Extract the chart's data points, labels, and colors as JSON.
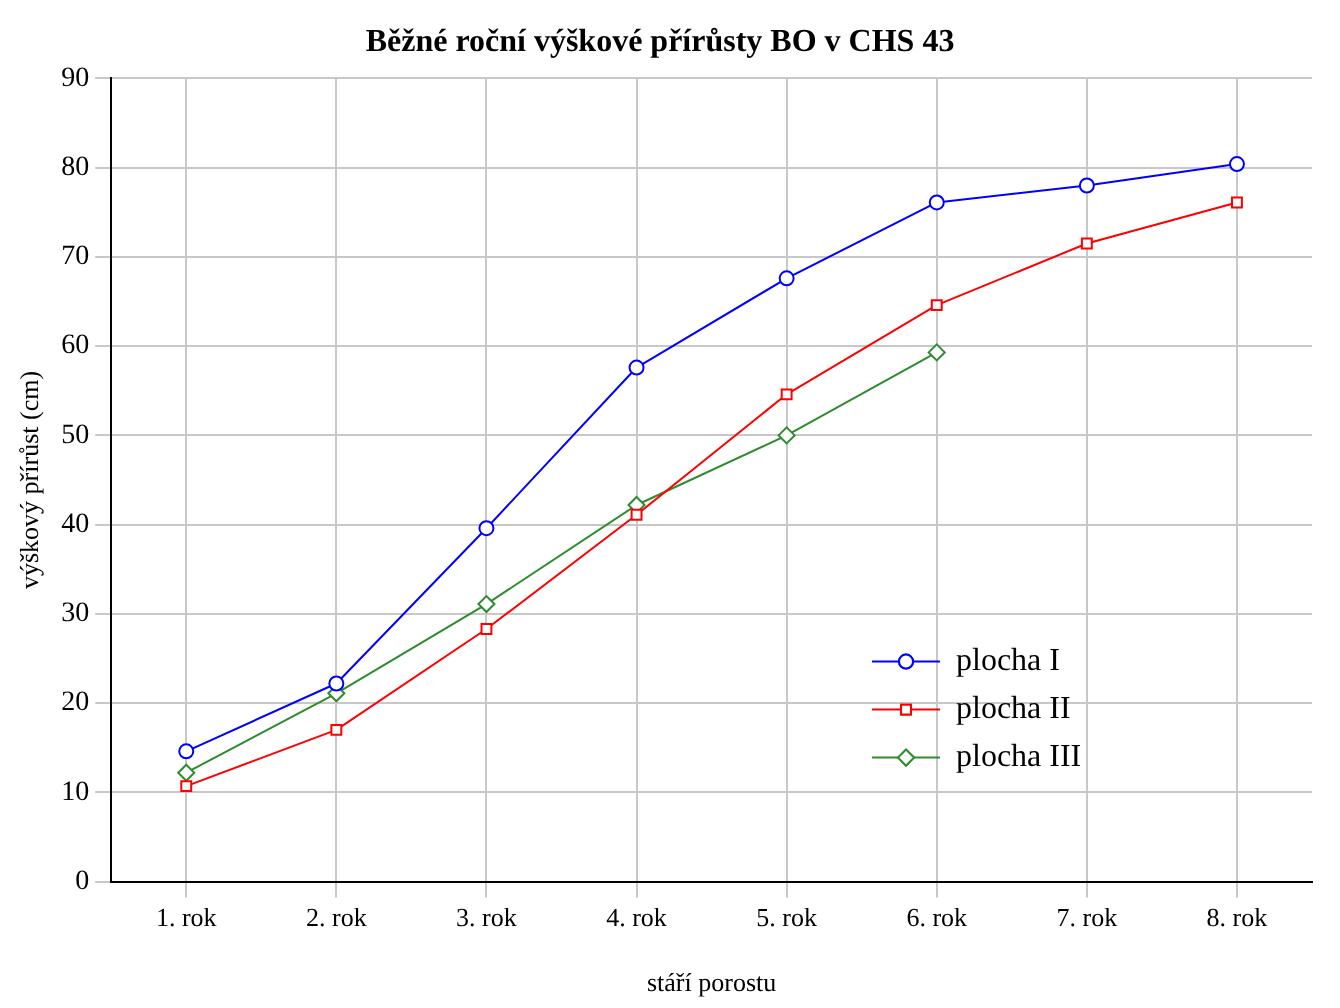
{
  "chart_data": {
    "type": "line",
    "title": "Běžné roční výškové přírůsty BO v CHS 43",
    "xlabel": "stáří porostu",
    "ylabel": "výškový přírůst (cm)",
    "categories": [
      "1. rok",
      "2. rok",
      "3. rok",
      "4. rok",
      "5. rok",
      "6. rok",
      "7. rok",
      "8. rok"
    ],
    "series": [
      {
        "name": "plocha I",
        "color": "#0000ff",
        "marker": "circle",
        "values": [
          14.6,
          22.2,
          39.6,
          57.6,
          67.6,
          76.1,
          78.0,
          80.4
        ]
      },
      {
        "name": "plocha II",
        "color": "#ff0000",
        "marker": "square",
        "values": [
          10.7,
          17.0,
          28.3,
          41.1,
          54.6,
          64.6,
          71.5,
          76.1
        ]
      },
      {
        "name": "plocha III",
        "color": "#2e8b2e",
        "marker": "diamond",
        "values": [
          12.2,
          21.1,
          31.1,
          42.2,
          50.0,
          59.3,
          null,
          null
        ]
      }
    ],
    "ylim": [
      0,
      90
    ],
    "yticks": [
      0,
      10,
      20,
      30,
      40,
      50,
      60,
      70,
      80,
      90
    ],
    "grid": true,
    "legend": "bottom right",
    "line_style": "solid"
  }
}
